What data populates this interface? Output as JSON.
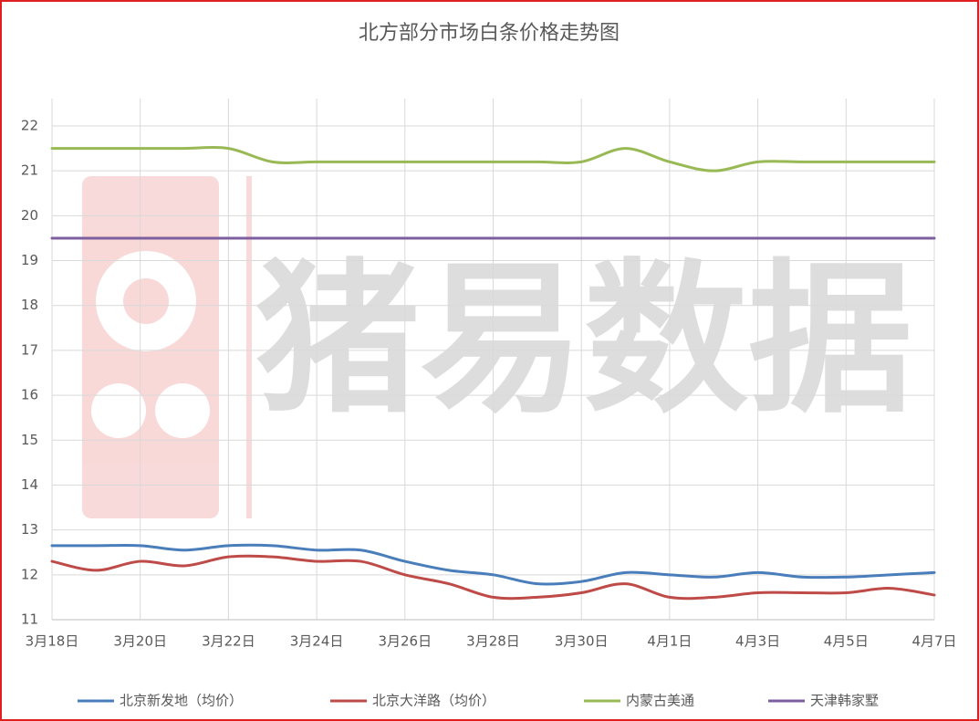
{
  "chart_data": {
    "type": "line",
    "title": "北方部分市场白条价格走势图",
    "watermark": "猪易数据",
    "categories": [
      "3月18日",
      null,
      "3月20日",
      null,
      "3月22日",
      null,
      "3月24日",
      null,
      "3月26日",
      null,
      "3月28日",
      null,
      "3月30日",
      null,
      "4月1日",
      null,
      "4月3日",
      null,
      "4月5日",
      null,
      "4月7日"
    ],
    "series": [
      {
        "name": "北京新发地（均价）",
        "color": "#4a7ebb",
        "values": [
          12.65,
          12.65,
          12.65,
          12.55,
          12.65,
          12.65,
          12.55,
          12.55,
          12.3,
          12.1,
          12.0,
          11.8,
          11.85,
          12.05,
          12.0,
          11.95,
          12.05,
          11.95,
          11.95,
          12.0,
          12.05
        ]
      },
      {
        "name": "北京大洋路（均价）",
        "color": "#be4b48",
        "values": [
          12.3,
          12.1,
          12.3,
          12.2,
          12.4,
          12.4,
          12.3,
          12.3,
          12.0,
          11.8,
          11.5,
          11.5,
          11.6,
          11.8,
          11.5,
          11.5,
          11.6,
          11.6,
          11.6,
          11.7,
          11.55
        ]
      },
      {
        "name": "内蒙古美通",
        "color": "#98b954",
        "values": [
          21.5,
          21.5,
          21.5,
          21.5,
          21.5,
          21.2,
          21.2,
          21.2,
          21.2,
          21.2,
          21.2,
          21.2,
          21.2,
          21.5,
          21.2,
          21.0,
          21.2,
          21.2,
          21.2,
          21.2,
          21.2
        ]
      },
      {
        "name": "天津韩家墅",
        "color": "#7d5fa0",
        "values": [
          19.5,
          19.5,
          19.5,
          19.5,
          19.5,
          19.5,
          19.5,
          19.5,
          19.5,
          19.5,
          19.5,
          19.5,
          19.5,
          19.5,
          19.5,
          19.5,
          19.5,
          19.5,
          19.5,
          19.5,
          19.5
        ]
      }
    ],
    "ylim": [
      11,
      22
    ],
    "yticks": [
      11,
      12,
      13,
      14,
      15,
      16,
      17,
      18,
      19,
      20,
      21,
      22
    ],
    "grid": true,
    "legend": "bottom"
  }
}
